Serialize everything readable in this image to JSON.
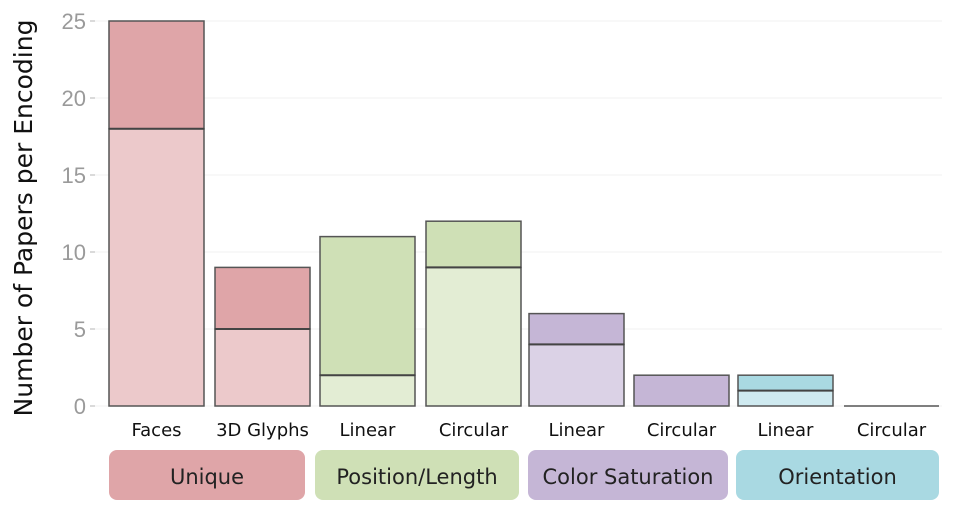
{
  "chart_data": {
    "type": "bar",
    "stacked": true,
    "ylabel": "Number of Papers per Encoding",
    "xlabel": "",
    "ylim": [
      0,
      25
    ],
    "yticks": [
      0,
      5,
      10,
      15,
      20,
      25
    ],
    "grid": true,
    "categories": [
      "Faces",
      "3D Glyphs",
      "Linear",
      "Circular",
      "Linear",
      "Circular",
      "Linear",
      "Circular"
    ],
    "groups": [
      {
        "label": "Unique",
        "color": "#dfa5a8",
        "light": "#ecc9cb",
        "members": [
          0,
          1
        ]
      },
      {
        "label": "Position/Length",
        "color": "#cfe0b6",
        "light": "#e3edd4",
        "members": [
          2,
          3
        ]
      },
      {
        "label": "Color Saturation",
        "color": "#c5b6d6",
        "light": "#dbd2e6",
        "members": [
          4,
          5
        ]
      },
      {
        "label": "Orientation",
        "color": "#a9d9e2",
        "light": "#cfeaf0",
        "members": [
          6,
          7
        ]
      }
    ],
    "series": [
      {
        "values": [
          18,
          5,
          2,
          9,
          4,
          0,
          1,
          0
        ]
      },
      {
        "values": [
          7,
          4,
          9,
          3,
          2,
          2,
          1,
          0
        ]
      }
    ],
    "totals": [
      25,
      9,
      11,
      12,
      6,
      2,
      2,
      0
    ]
  }
}
